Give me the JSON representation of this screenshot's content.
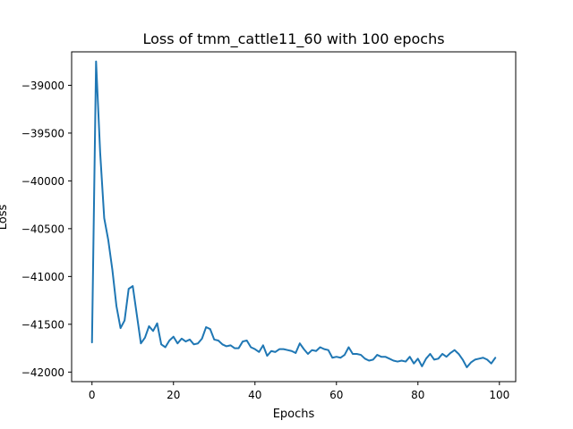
{
  "chart_data": {
    "type": "line",
    "title": "Loss of tmm_cattle11_60 with 100 epochs",
    "xlabel": "Epochs",
    "ylabel": "Loss",
    "xlim": [
      -5,
      104
    ],
    "ylim": [
      -42100,
      -38650
    ],
    "xticks": [
      0,
      20,
      40,
      60,
      80,
      100
    ],
    "yticks": [
      -42000,
      -41500,
      -41000,
      -40500,
      -40000,
      -39500,
      -39000
    ],
    "xtick_labels": [
      "0",
      "20",
      "40",
      "60",
      "80",
      "100"
    ],
    "ytick_labels": [
      "−42000",
      "−41500",
      "−41000",
      "−40500",
      "−40000",
      "−39500",
      "−39000"
    ],
    "grid": false,
    "legend": "none",
    "line_color": "#1f77b4",
    "x": [
      0,
      1,
      2,
      3,
      4,
      5,
      6,
      7,
      8,
      9,
      10,
      11,
      12,
      13,
      14,
      15,
      16,
      17,
      18,
      19,
      20,
      21,
      22,
      23,
      24,
      25,
      26,
      27,
      28,
      29,
      30,
      31,
      32,
      33,
      34,
      35,
      36,
      37,
      38,
      39,
      40,
      41,
      42,
      43,
      44,
      45,
      46,
      47,
      48,
      49,
      50,
      51,
      52,
      53,
      54,
      55,
      56,
      57,
      58,
      59,
      60,
      61,
      62,
      63,
      64,
      65,
      66,
      67,
      68,
      69,
      70,
      71,
      72,
      73,
      74,
      75,
      76,
      77,
      78,
      79,
      80,
      81,
      82,
      83,
      84,
      85,
      86,
      87,
      88,
      89,
      90,
      91,
      92,
      93,
      94,
      95,
      96,
      97,
      98,
      99
    ],
    "y": [
      -41690,
      -38750,
      -39700,
      -40390,
      -40620,
      -40930,
      -41310,
      -41540,
      -41460,
      -41130,
      -41100,
      -41400,
      -41700,
      -41640,
      -41520,
      -41570,
      -41490,
      -41710,
      -41740,
      -41670,
      -41630,
      -41700,
      -41650,
      -41680,
      -41660,
      -41710,
      -41700,
      -41650,
      -41530,
      -41550,
      -41660,
      -41670,
      -41710,
      -41730,
      -41720,
      -41750,
      -41750,
      -41680,
      -41670,
      -41740,
      -41760,
      -41790,
      -41720,
      -41830,
      -41780,
      -41790,
      -41760,
      -41760,
      -41770,
      -41780,
      -41800,
      -41700,
      -41760,
      -41810,
      -41770,
      -41780,
      -41740,
      -41760,
      -41770,
      -41850,
      -41840,
      -41850,
      -41820,
      -41740,
      -41810,
      -41810,
      -41820,
      -41860,
      -41880,
      -41870,
      -41820,
      -41840,
      -41840,
      -41860,
      -41880,
      -41890,
      -41880,
      -41890,
      -41840,
      -41910,
      -41860,
      -41940,
      -41860,
      -41810,
      -41870,
      -41860,
      -41810,
      -41840,
      -41800,
      -41770,
      -41810,
      -41870,
      -41950,
      -41900,
      -41870,
      -41860,
      -41850,
      -41870,
      -41910,
      -41850
    ]
  }
}
